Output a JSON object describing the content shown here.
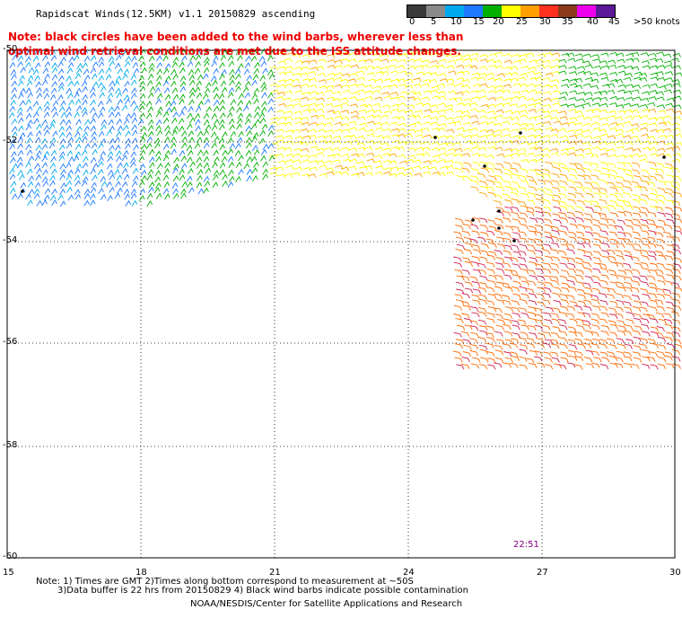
{
  "header": {
    "title": "Rapidscat Winds(12.5KM) v1.1 20150829 ascending",
    "note_line1": "Note: black circles have been added to the wind barbs, wherever less than",
    "note_line2": "optimal wind retrieval conditions are met due to the ISS attitude changes."
  },
  "colorbar": {
    "labels": [
      "0",
      "5",
      "10",
      "15",
      "20",
      "25",
      "30",
      "35",
      "40",
      "45",
      ">50 knots"
    ],
    "colors": [
      "#3a3a3a",
      "#8a8a8a",
      "#00aaee",
      "#1e78ff",
      "#00b000",
      "#ffff00",
      "#ffa000",
      "#ff3020",
      "#8b3a1a",
      "#ee00ee",
      "#5a1a9a"
    ]
  },
  "map": {
    "lat_labels": [
      "-50",
      "-52",
      "-54",
      "-56",
      "-58",
      "-60"
    ],
    "lon_labels": [
      "15",
      "18",
      "21",
      "24",
      "27",
      "30"
    ],
    "time_label": "22:51",
    "regions": [
      {
        "name": "western-swath",
        "speed": "10-15 knots",
        "color": "#1e78ff"
      },
      {
        "name": "central-swath",
        "speed": "15-20 knots",
        "color": "#00b000"
      },
      {
        "name": "eastern-swath",
        "speed": "20-25 knots",
        "color": "#ffff00"
      },
      {
        "name": "southeast-swath",
        "speed": "25-35 knots",
        "color": "#ff6a00"
      }
    ]
  },
  "footer": {
    "line1": "Note: 1) Times are GMT 2)Times along bottom correspond to measurement at ~50S",
    "line2": "3)Data buffer is 22 hrs from 20150829 4) Black wind barbs indicate possible contamination",
    "line3": "NOAA/NESDIS/Center for Satellite Applications and Research"
  }
}
